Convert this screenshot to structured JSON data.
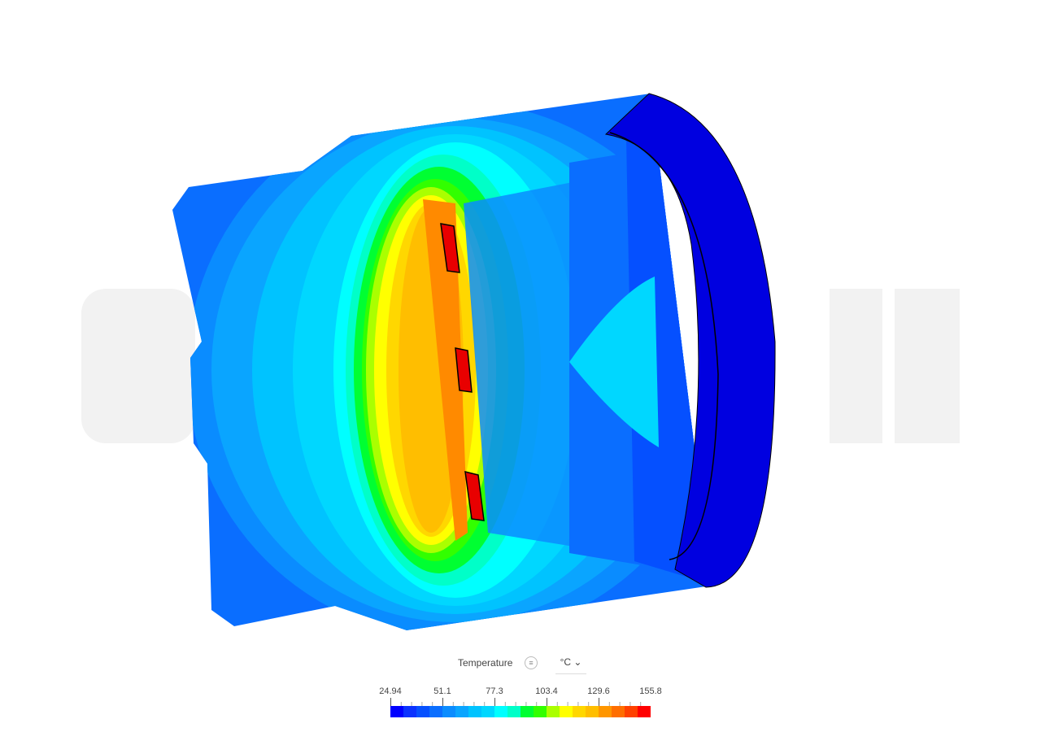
{
  "legend": {
    "title": "Temperature",
    "info_icon": "list-icon",
    "unit": "°C",
    "unit_icon": "chevron-down-icon",
    "tick_labels": [
      "24.94",
      "51.1",
      "77.3",
      "103.4",
      "129.6",
      "155.8"
    ],
    "min": 24.94,
    "max": 155.8,
    "colors": [
      "#0000ff",
      "#0a32ff",
      "#0550ff",
      "#0a6eff",
      "#0a8cff",
      "#0aa5ff",
      "#00c3ff",
      "#00d7ff",
      "#00ffff",
      "#00ffc8",
      "#00ff32",
      "#32ff00",
      "#aaff00",
      "#ffff00",
      "#ffd700",
      "#ffbe00",
      "#ff9600",
      "#ff6e00",
      "#ff4100",
      "#ff0000"
    ]
  },
  "watermark": "SIMSCALE"
}
